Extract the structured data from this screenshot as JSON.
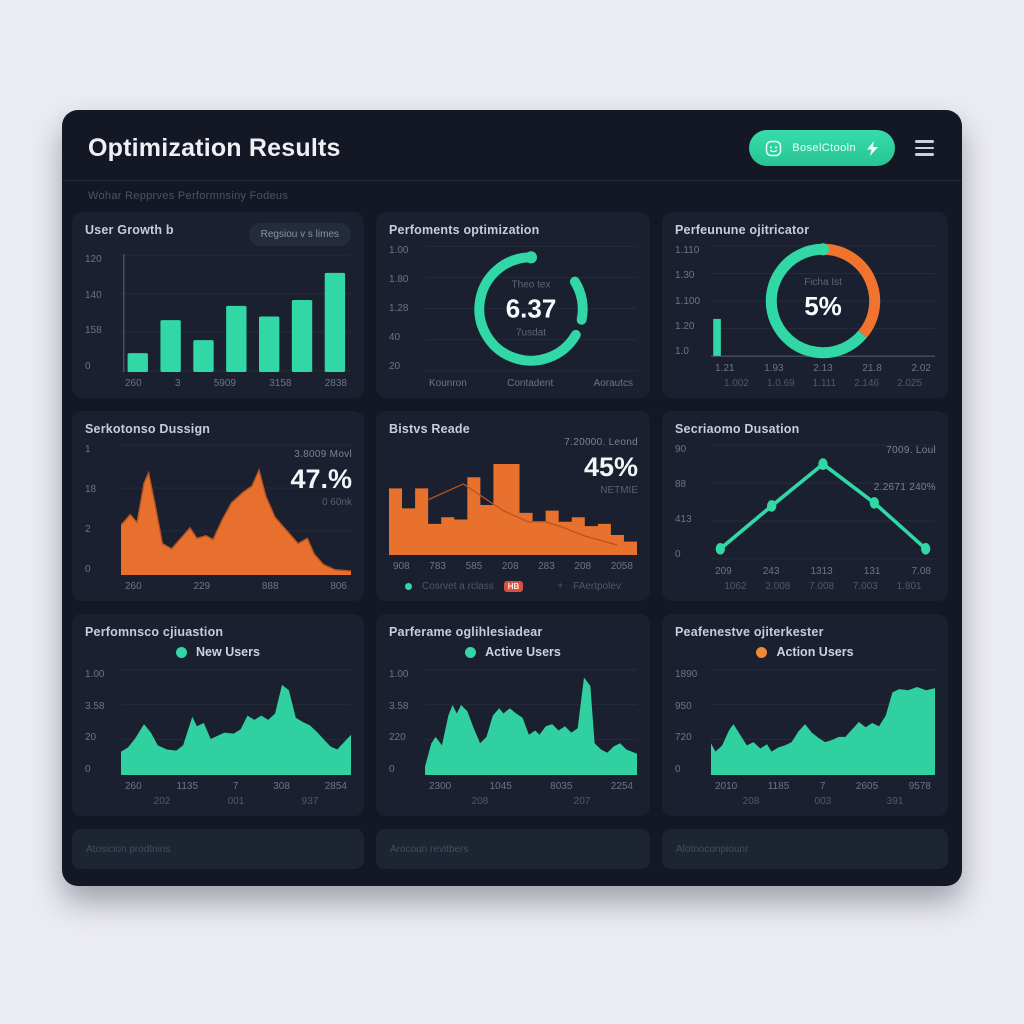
{
  "header": {
    "title": "Optimization Results",
    "subtitle": "Wohar Repprves Performnsiny Fodeus",
    "button_label": "BoselCtooln"
  },
  "cards": [
    {
      "title": "User Growth b",
      "badge": "Regsiou v s limes"
    },
    {
      "title": "Perfoments optimization"
    },
    {
      "title": "Perfeunune ojitricator"
    },
    {
      "title": "Serkotonso Dussign"
    },
    {
      "title": "Bistvs Reade"
    },
    {
      "title": "Secriaomo Dusation"
    },
    {
      "title": "Perfomnsco cjiuastion"
    },
    {
      "title": "Parferame oglihlesiadear"
    },
    {
      "title": "Peafenestve ojiterkester"
    }
  ],
  "footer": {
    "items": [
      "Atosicion prodtnins",
      "Arócoun revitbers",
      "Alotnoconpiounr"
    ]
  },
  "colors": {
    "teal": "#31d7a4",
    "teal_dark": "#23b186",
    "orange": "#f0742e",
    "orange_dark": "#b9541f",
    "grid": "#242b3b",
    "axis": "#47536b",
    "badge_red": "#d9503f",
    "legend_orange": "#ef8a35"
  },
  "chart_data": [
    {
      "type": "bar",
      "title": "User Growth b",
      "ylabels": [
        "120",
        "140",
        "158",
        "0"
      ],
      "xlabels": [
        "260",
        "3",
        "5909",
        "3158",
        "2838"
      ],
      "values": [
        16,
        44,
        27,
        56,
        47,
        61,
        84
      ],
      "ylim": [
        0,
        120
      ],
      "grid": true,
      "color": "teal"
    },
    {
      "type": "gauge",
      "title": "Perfoments optimization",
      "ylabels": [
        "1.00",
        "1.80",
        "1.28",
        "40",
        "20"
      ],
      "xlabels": [
        "Kounron",
        "Contadent",
        "Aorautcs"
      ],
      "center_top": "Theo tex",
      "center_value": "6.37",
      "center_bottom": "7usdat",
      "arc_fraction": 0.65,
      "grid": true,
      "color": "teal"
    },
    {
      "type": "donut",
      "title": "Perfeunune ojitricator",
      "ylabels": [
        "1.110",
        "1.30",
        "1.100",
        "1.20",
        "1.0"
      ],
      "xlabels": [
        "1.21",
        "1.93",
        "2.13",
        "21.8",
        "2.02"
      ],
      "xlabels2": [
        "1.002",
        "1.0.69",
        "1.111",
        "2.146",
        "2.025"
      ],
      "center_top": "Ficha Ist",
      "center_value": "5%",
      "slices": [
        {
          "name": "teal",
          "fraction": 0.64
        },
        {
          "name": "orange",
          "fraction": 0.36
        }
      ],
      "grid": true
    },
    {
      "type": "area",
      "title": "Serkotonso Dussign",
      "color": "orange",
      "ylabels": [
        "1",
        "18",
        "2",
        "0"
      ],
      "xlabels": [
        "260",
        "229",
        "888",
        "806"
      ],
      "points": [
        [
          0,
          38
        ],
        [
          4,
          46
        ],
        [
          7,
          40
        ],
        [
          10,
          70
        ],
        [
          12,
          78
        ],
        [
          15,
          52
        ],
        [
          18,
          24
        ],
        [
          22,
          20
        ],
        [
          26,
          28
        ],
        [
          30,
          36
        ],
        [
          33,
          28
        ],
        [
          37,
          30
        ],
        [
          40,
          27
        ],
        [
          44,
          42
        ],
        [
          48,
          55
        ],
        [
          53,
          63
        ],
        [
          57,
          68
        ],
        [
          60,
          80
        ],
        [
          63,
          60
        ],
        [
          67,
          44
        ],
        [
          70,
          38
        ],
        [
          74,
          30
        ],
        [
          77,
          24
        ],
        [
          81,
          28
        ],
        [
          84,
          16
        ],
        [
          88,
          8
        ],
        [
          93,
          4
        ],
        [
          100,
          3
        ]
      ],
      "overlay": {
        "line1": "3.8009 Movl",
        "big": "47.%",
        "line2": "0 60nk"
      },
      "grid": true
    },
    {
      "type": "area-step",
      "title": "Bistvs Reade",
      "color": "orange",
      "xlabels": [
        "908",
        "783",
        "585",
        "208",
        "283",
        "208",
        "2058"
      ],
      "values": [
        60,
        42,
        60,
        28,
        34,
        32,
        70,
        45,
        82,
        82,
        38,
        30,
        40,
        30,
        34,
        26,
        28,
        18,
        12
      ],
      "line_points": [
        [
          16,
          50
        ],
        [
          30,
          64
        ],
        [
          46,
          40
        ],
        [
          56,
          30
        ],
        [
          63,
          30
        ],
        [
          70,
          25
        ],
        [
          79,
          17
        ],
        [
          92,
          9
        ]
      ],
      "overlay": {
        "line1": "7.20000. Leond",
        "big": "45%",
        "line2": "NETMIE"
      },
      "legend": {
        "dot_label": "Cosrvet a rclass",
        "badge": "HB",
        "alt_marker": "+",
        "alt_label": "FAertpolev"
      },
      "grid": false
    },
    {
      "type": "line",
      "title": "Secriaomo Dusation",
      "color": "teal",
      "ylabels": [
        "90",
        "88",
        "413",
        "0"
      ],
      "xlabels": [
        "209",
        "243",
        "1313",
        "131",
        "7.08"
      ],
      "xlabels2": [
        "1062",
        "2.008",
        "7.008",
        "7.003",
        "1.801"
      ],
      "values": [
        3,
        45,
        86,
        48,
        3
      ],
      "overlay": {
        "line1": "7009. Loul",
        "line2": "2.2671 240%"
      },
      "grid": true
    },
    {
      "type": "area",
      "title": "Perfomnsco cjiuastion",
      "color": "teal",
      "legend": {
        "label": "New Users",
        "color": "#31d7a4"
      },
      "ylabels": [
        "1.00",
        "3.58",
        "20",
        "0"
      ],
      "xlabels": [
        "260",
        "1135",
        "7",
        "308",
        "2854"
      ],
      "xlabels2": [
        "202",
        "001",
        "937"
      ],
      "points": [
        [
          0,
          22
        ],
        [
          3,
          26
        ],
        [
          6,
          34
        ],
        [
          10,
          48
        ],
        [
          13,
          40
        ],
        [
          16,
          28
        ],
        [
          20,
          24
        ],
        [
          24,
          23
        ],
        [
          27,
          28
        ],
        [
          31,
          55
        ],
        [
          33,
          46
        ],
        [
          36,
          49
        ],
        [
          39,
          34
        ],
        [
          42,
          37
        ],
        [
          45,
          40
        ],
        [
          49,
          39
        ],
        [
          52,
          43
        ],
        [
          55,
          56
        ],
        [
          58,
          52
        ],
        [
          61,
          56
        ],
        [
          64,
          52
        ],
        [
          67,
          58
        ],
        [
          70,
          85
        ],
        [
          73,
          80
        ],
        [
          76,
          54
        ],
        [
          79,
          50
        ],
        [
          82,
          47
        ],
        [
          85,
          41
        ],
        [
          88,
          34
        ],
        [
          91,
          27
        ],
        [
          94,
          24
        ],
        [
          97,
          31
        ],
        [
          100,
          38
        ]
      ],
      "grid": true
    },
    {
      "type": "area",
      "title": "Parferame oglihlesiadear",
      "color": "teal",
      "legend": {
        "label": "Active Users",
        "color": "#31d7a4"
      },
      "ylabels": [
        "1.00",
        "3.58",
        "220",
        "0"
      ],
      "xlabels": [
        "2300",
        "1045",
        "8035",
        "2254"
      ],
      "xlabels2": [
        "208",
        "207"
      ],
      "points": [
        [
          0,
          8
        ],
        [
          3,
          30
        ],
        [
          5,
          36
        ],
        [
          8,
          28
        ],
        [
          11,
          56
        ],
        [
          13,
          66
        ],
        [
          15,
          58
        ],
        [
          17,
          66
        ],
        [
          20,
          60
        ],
        [
          23,
          44
        ],
        [
          26,
          30
        ],
        [
          29,
          36
        ],
        [
          32,
          56
        ],
        [
          35,
          63
        ],
        [
          37,
          58
        ],
        [
          40,
          63
        ],
        [
          43,
          58
        ],
        [
          46,
          54
        ],
        [
          49,
          38
        ],
        [
          52,
          42
        ],
        [
          54,
          38
        ],
        [
          57,
          46
        ],
        [
          60,
          48
        ],
        [
          63,
          42
        ],
        [
          66,
          46
        ],
        [
          69,
          40
        ],
        [
          72,
          44
        ],
        [
          75,
          92
        ],
        [
          78,
          84
        ],
        [
          80,
          30
        ],
        [
          83,
          24
        ],
        [
          86,
          21
        ],
        [
          89,
          27
        ],
        [
          92,
          30
        ],
        [
          95,
          24
        ],
        [
          100,
          20
        ]
      ],
      "grid": true
    },
    {
      "type": "area",
      "title": "Peafenestve ojiterkester",
      "color": "teal",
      "legend": {
        "label": "Action Users",
        "color": "#ef8a35"
      },
      "ylabels": [
        "1890",
        "950",
        "720",
        "0"
      ],
      "xlabels": [
        "2010",
        "1185",
        "7",
        "2605",
        "9578"
      ],
      "xlabels2": [
        "208",
        "003",
        "391"
      ],
      "points": [
        [
          0,
          30
        ],
        [
          2,
          22
        ],
        [
          5,
          28
        ],
        [
          8,
          42
        ],
        [
          10,
          48
        ],
        [
          13,
          38
        ],
        [
          16,
          28
        ],
        [
          19,
          31
        ],
        [
          22,
          25
        ],
        [
          25,
          29
        ],
        [
          27,
          22
        ],
        [
          30,
          26
        ],
        [
          33,
          28
        ],
        [
          36,
          31
        ],
        [
          39,
          41
        ],
        [
          42,
          48
        ],
        [
          45,
          40
        ],
        [
          48,
          35
        ],
        [
          51,
          31
        ],
        [
          54,
          33
        ],
        [
          57,
          36
        ],
        [
          60,
          36
        ],
        [
          63,
          43
        ],
        [
          66,
          50
        ],
        [
          69,
          45
        ],
        [
          72,
          49
        ],
        [
          75,
          46
        ],
        [
          78,
          56
        ],
        [
          81,
          78
        ],
        [
          84,
          81
        ],
        [
          88,
          80
        ],
        [
          92,
          83
        ],
        [
          96,
          80
        ],
        [
          100,
          82
        ]
      ],
      "grid": true
    }
  ]
}
